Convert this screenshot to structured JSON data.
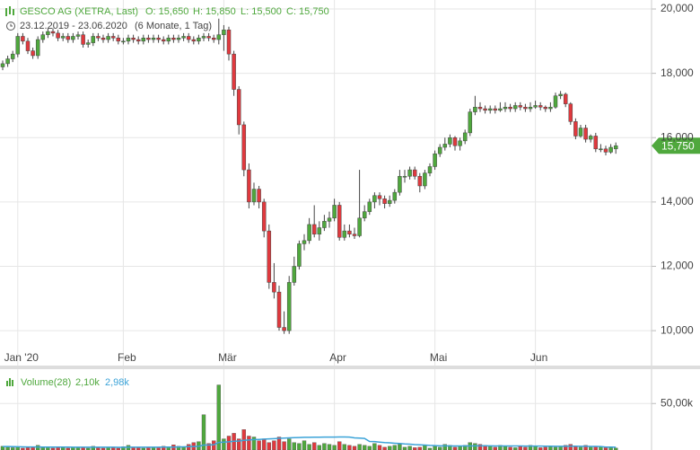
{
  "header": {
    "name": "GESCO AG (XETRA, Last)",
    "ohlc": [
      "O: 15,650",
      "H: 15,850",
      "L: 15,500",
      "C: 15,750"
    ],
    "range": "23.12.2019 - 23.06.2020",
    "span": "(6 Monate, 1 Tag)"
  },
  "chart_data": {
    "type": "candlestick",
    "categories": [
      null,
      null,
      null,
      "Jan '20",
      null,
      null,
      null,
      null,
      null,
      null,
      null,
      null,
      null,
      null,
      null,
      null,
      null,
      null,
      null,
      null,
      null,
      null,
      null,
      null,
      "Feb",
      null,
      null,
      null,
      null,
      null,
      null,
      null,
      null,
      null,
      null,
      null,
      null,
      null,
      null,
      null,
      null,
      null,
      null,
      null,
      "Mär",
      null,
      null,
      null,
      null,
      null,
      null,
      null,
      null,
      null,
      null,
      null,
      null,
      null,
      null,
      null,
      null,
      null,
      null,
      null,
      null,
      null,
      "Apr",
      null,
      null,
      null,
      null,
      null,
      null,
      null,
      null,
      null,
      null,
      null,
      null,
      null,
      null,
      null,
      null,
      null,
      null,
      null,
      "Mai",
      null,
      null,
      null,
      null,
      null,
      null,
      null,
      null,
      null,
      null,
      null,
      null,
      null,
      null,
      null,
      null,
      null,
      null,
      null,
      "Jun",
      null,
      null,
      null,
      null,
      null,
      null,
      null,
      null,
      null,
      null,
      null,
      null,
      null,
      null,
      null,
      null
    ],
    "candles": [
      [
        18200,
        18400,
        18100,
        18300
      ],
      [
        18300,
        18550,
        18200,
        18450
      ],
      [
        18450,
        18700,
        18350,
        18600
      ],
      [
        18600,
        19250,
        18500,
        19150
      ],
      [
        19150,
        19250,
        18900,
        19000
      ],
      [
        19000,
        19100,
        18600,
        18700
      ],
      [
        18700,
        18800,
        18450,
        18550
      ],
      [
        18550,
        19150,
        18450,
        19050
      ],
      [
        19050,
        19300,
        18950,
        19200
      ],
      [
        19200,
        19400,
        19100,
        19300
      ],
      [
        19300,
        19400,
        19150,
        19250
      ],
      [
        19250,
        19350,
        19000,
        19100
      ],
      [
        19100,
        19250,
        19000,
        19150
      ],
      [
        19150,
        19250,
        18950,
        19050
      ],
      [
        19050,
        19250,
        18950,
        19150
      ],
      [
        19150,
        19300,
        19050,
        19200
      ],
      [
        19200,
        19300,
        18800,
        18900
      ],
      [
        18900,
        19050,
        18800,
        18950
      ],
      [
        18950,
        19250,
        18850,
        19150
      ],
      [
        19150,
        19250,
        19000,
        19100
      ],
      [
        19100,
        19200,
        18950,
        19050
      ],
      [
        19050,
        19250,
        18950,
        19150
      ],
      [
        19150,
        19250,
        19000,
        19100
      ],
      [
        19100,
        19200,
        18900,
        19000
      ],
      [
        19000,
        19100,
        18900,
        19000
      ],
      [
        19000,
        19200,
        18900,
        19100
      ],
      [
        19100,
        19200,
        18950,
        19050
      ],
      [
        19050,
        19150,
        18900,
        19000
      ],
      [
        19000,
        19200,
        18900,
        19100
      ],
      [
        19100,
        19200,
        18950,
        19050
      ],
      [
        19050,
        19200,
        18950,
        19100
      ],
      [
        19100,
        19200,
        18950,
        19050
      ],
      [
        19050,
        19150,
        18900,
        19000
      ],
      [
        19000,
        19200,
        18900,
        19100
      ],
      [
        19100,
        19200,
        18950,
        19050
      ],
      [
        19050,
        19200,
        18950,
        19100
      ],
      [
        19100,
        19250,
        19000,
        19150
      ],
      [
        19150,
        19250,
        18950,
        19050
      ],
      [
        19050,
        19150,
        18900,
        19000
      ],
      [
        19000,
        19200,
        18900,
        19100
      ],
      [
        19100,
        19250,
        19000,
        19150
      ],
      [
        19150,
        19250,
        19000,
        19100
      ],
      [
        19100,
        19200,
        18950,
        19050
      ],
      [
        19050,
        19700,
        18900,
        19200
      ],
      [
        19200,
        19500,
        18700,
        19350
      ],
      [
        19350,
        19450,
        18400,
        18600
      ],
      [
        18600,
        18700,
        17300,
        17500
      ],
      [
        17500,
        17600,
        16100,
        16400
      ],
      [
        16400,
        16500,
        14800,
        15000
      ],
      [
        15000,
        15200,
        13800,
        14000
      ],
      [
        14000,
        14600,
        13900,
        14400
      ],
      [
        14400,
        14500,
        13800,
        14000
      ],
      [
        14000,
        14100,
        12900,
        13100
      ],
      [
        13100,
        13300,
        11300,
        11500
      ],
      [
        11500,
        12100,
        11000,
        11200
      ],
      [
        11200,
        11400,
        10000,
        10100
      ],
      [
        10100,
        10600,
        9900,
        10000
      ],
      [
        10000,
        11700,
        9900,
        11500
      ],
      [
        11500,
        12300,
        11400,
        12000
      ],
      [
        12000,
        12800,
        11900,
        12700
      ],
      [
        12700,
        13000,
        12500,
        12800
      ],
      [
        12800,
        13500,
        12700,
        13300
      ],
      [
        13300,
        13900,
        12900,
        13000
      ],
      [
        13000,
        13400,
        12800,
        13200
      ],
      [
        13200,
        13600,
        13100,
        13400
      ],
      [
        13400,
        13700,
        13200,
        13500
      ],
      [
        13500,
        14100,
        13400,
        13900
      ],
      [
        13900,
        14000,
        12800,
        12900
      ],
      [
        12900,
        13300,
        12800,
        13100
      ],
      [
        13100,
        13300,
        12900,
        13000
      ],
      [
        13000,
        13200,
        12850,
        12950
      ],
      [
        12950,
        15000,
        12900,
        13500
      ],
      [
        13500,
        13900,
        13400,
        13700
      ],
      [
        13700,
        14100,
        13600,
        14000
      ],
      [
        14000,
        14300,
        13800,
        14200
      ],
      [
        14200,
        14300,
        13900,
        14100
      ],
      [
        14100,
        14200,
        13800,
        13950
      ],
      [
        13950,
        14200,
        13850,
        14050
      ],
      [
        14050,
        14400,
        13950,
        14300
      ],
      [
        14300,
        15000,
        14200,
        14800
      ],
      [
        14800,
        15000,
        14600,
        14800
      ],
      [
        14800,
        15100,
        14700,
        15000
      ],
      [
        15000,
        15100,
        14700,
        14800
      ],
      [
        14800,
        14900,
        14300,
        14500
      ],
      [
        14500,
        15000,
        14400,
        14900
      ],
      [
        14900,
        15200,
        14800,
        15100
      ],
      [
        15100,
        15600,
        15000,
        15500
      ],
      [
        15500,
        15800,
        15400,
        15700
      ],
      [
        15700,
        16000,
        15600,
        15800
      ],
      [
        15800,
        16100,
        15700,
        16000
      ],
      [
        16000,
        16050,
        15600,
        15750
      ],
      [
        15750,
        16000,
        15600,
        15900
      ],
      [
        15900,
        16250,
        15800,
        16150
      ],
      [
        16150,
        16900,
        16050,
        16800
      ],
      [
        16800,
        17300,
        16700,
        16950
      ],
      [
        16950,
        17100,
        16800,
        16900
      ],
      [
        16900,
        17000,
        16750,
        16850
      ],
      [
        16850,
        17000,
        16750,
        16900
      ],
      [
        16900,
        17000,
        16750,
        16850
      ],
      [
        16850,
        17100,
        16800,
        16900
      ],
      [
        16900,
        17100,
        16800,
        16950
      ],
      [
        16950,
        17050,
        16800,
        16900
      ],
      [
        16900,
        17100,
        16800,
        17000
      ],
      [
        17000,
        17100,
        16850,
        16950
      ],
      [
        16950,
        17050,
        16800,
        16900
      ],
      [
        16900,
        17100,
        16800,
        16950
      ],
      [
        16950,
        17150,
        16900,
        17000
      ],
      [
        17000,
        17100,
        16850,
        16950
      ],
      [
        16950,
        17000,
        16800,
        16900
      ],
      [
        16900,
        17100,
        16800,
        16950
      ],
      [
        16950,
        17400,
        16900,
        17300
      ],
      [
        17300,
        17450,
        17200,
        17350
      ],
      [
        17350,
        17400,
        16950,
        17050
      ],
      [
        17050,
        17100,
        16400,
        16500
      ],
      [
        16500,
        16600,
        15950,
        16050
      ],
      [
        16050,
        16400,
        16000,
        16300
      ],
      [
        16300,
        16400,
        15850,
        15950
      ],
      [
        15950,
        16100,
        15850,
        16050
      ],
      [
        16050,
        16150,
        15550,
        15650
      ],
      [
        15650,
        15800,
        15550,
        15650
      ],
      [
        15650,
        15750,
        15450,
        15550
      ],
      [
        15550,
        15800,
        15500,
        15700
      ],
      [
        15650,
        15850,
        15500,
        15750
      ]
    ],
    "up_color": "#4fa83d",
    "down_color": "#e0393e",
    "ylim": [
      8970,
      20280
    ],
    "yticks": [
      {
        "value": 10000,
        "label": "10,000"
      },
      {
        "value": 12000,
        "label": "12,000"
      },
      {
        "value": 14000,
        "label": "14,000"
      },
      {
        "value": 16000,
        "label": "16,000"
      },
      {
        "value": 18000,
        "label": "18,000"
      },
      {
        "value": 20000,
        "label": "20,000"
      }
    ],
    "last_label": "15,750",
    "grid": true,
    "volume": {
      "name": "Volume(28)",
      "legend_values": [
        "2,10k",
        "2,98k"
      ],
      "ma_color": "#3ba3d8",
      "values": [
        4000,
        3000,
        2500,
        3500,
        2000,
        2500,
        3000,
        5000,
        2500,
        3000,
        2000,
        3500,
        2500,
        2000,
        3000,
        2500,
        3000,
        2000,
        4000,
        2500,
        2000,
        3000,
        2500,
        2000,
        3500,
        5000,
        3000,
        2500,
        2000,
        3000,
        2500,
        3000,
        4000,
        3000,
        5500,
        4000,
        3000,
        6000,
        8000,
        9000,
        38000,
        7000,
        10000,
        70000,
        12000,
        15000,
        18000,
        12000,
        22000,
        15000,
        14000,
        10000,
        12000,
        8000,
        10000,
        14000,
        9000,
        12000,
        8000,
        7000,
        10000,
        6000,
        8000,
        5000,
        7000,
        6000,
        5000,
        9000,
        6000,
        5000,
        4000,
        6000,
        5000,
        4000,
        7000,
        5000,
        3000,
        4000,
        5000,
        6000,
        3000,
        4000,
        2500,
        3000,
        5000,
        2000,
        4000,
        3000,
        6000,
        5000,
        3000,
        4000,
        5000,
        8000,
        7000,
        6000,
        5000,
        4000,
        3000,
        5000,
        4000,
        3000,
        2500,
        4000,
        3000,
        5000,
        4000,
        2500,
        3000,
        3500,
        3000,
        4000,
        5000,
        6000,
        4000,
        3000,
        5000,
        3000,
        4000,
        3500,
        3000,
        2500,
        2100
      ],
      "ma": [
        3800,
        3700,
        3600,
        3500,
        3400,
        3300,
        3300,
        3300,
        3200,
        3200,
        3200,
        3100,
        3100,
        3100,
        3000,
        3000,
        3000,
        3000,
        3000,
        3000,
        3000,
        3000,
        3000,
        2900,
        2900,
        3000,
        3000,
        3000,
        3000,
        3000,
        3000,
        3000,
        3100,
        3100,
        3200,
        3300,
        3400,
        3600,
        3800,
        4000,
        5300,
        5400,
        5700,
        8100,
        8400,
        8800,
        9400,
        9700,
        10400,
        10800,
        11200,
        11400,
        11700,
        11900,
        12200,
        12600,
        12800,
        13100,
        13300,
        13400,
        13600,
        13700,
        13800,
        13800,
        13900,
        13900,
        13900,
        14000,
        14000,
        13900,
        13000,
        12800,
        12500,
        9200,
        9000,
        8500,
        8000,
        7700,
        7300,
        7000,
        6500,
        6300,
        5800,
        5500,
        5300,
        4900,
        4700,
        4500,
        4500,
        4400,
        4300,
        4300,
        4300,
        4400,
        4500,
        4500,
        4500,
        4500,
        4400,
        4400,
        4400,
        4300,
        4300,
        4300,
        4200,
        4200,
        4200,
        4200,
        4100,
        4100,
        4000,
        4000,
        4000,
        4100,
        4100,
        4000,
        4000,
        3900,
        3900,
        3800,
        3200,
        3100,
        2980
      ],
      "ylim": [
        0,
        86000
      ],
      "yticks": [
        {
          "value": 50000,
          "label": "50,00k"
        }
      ]
    }
  }
}
